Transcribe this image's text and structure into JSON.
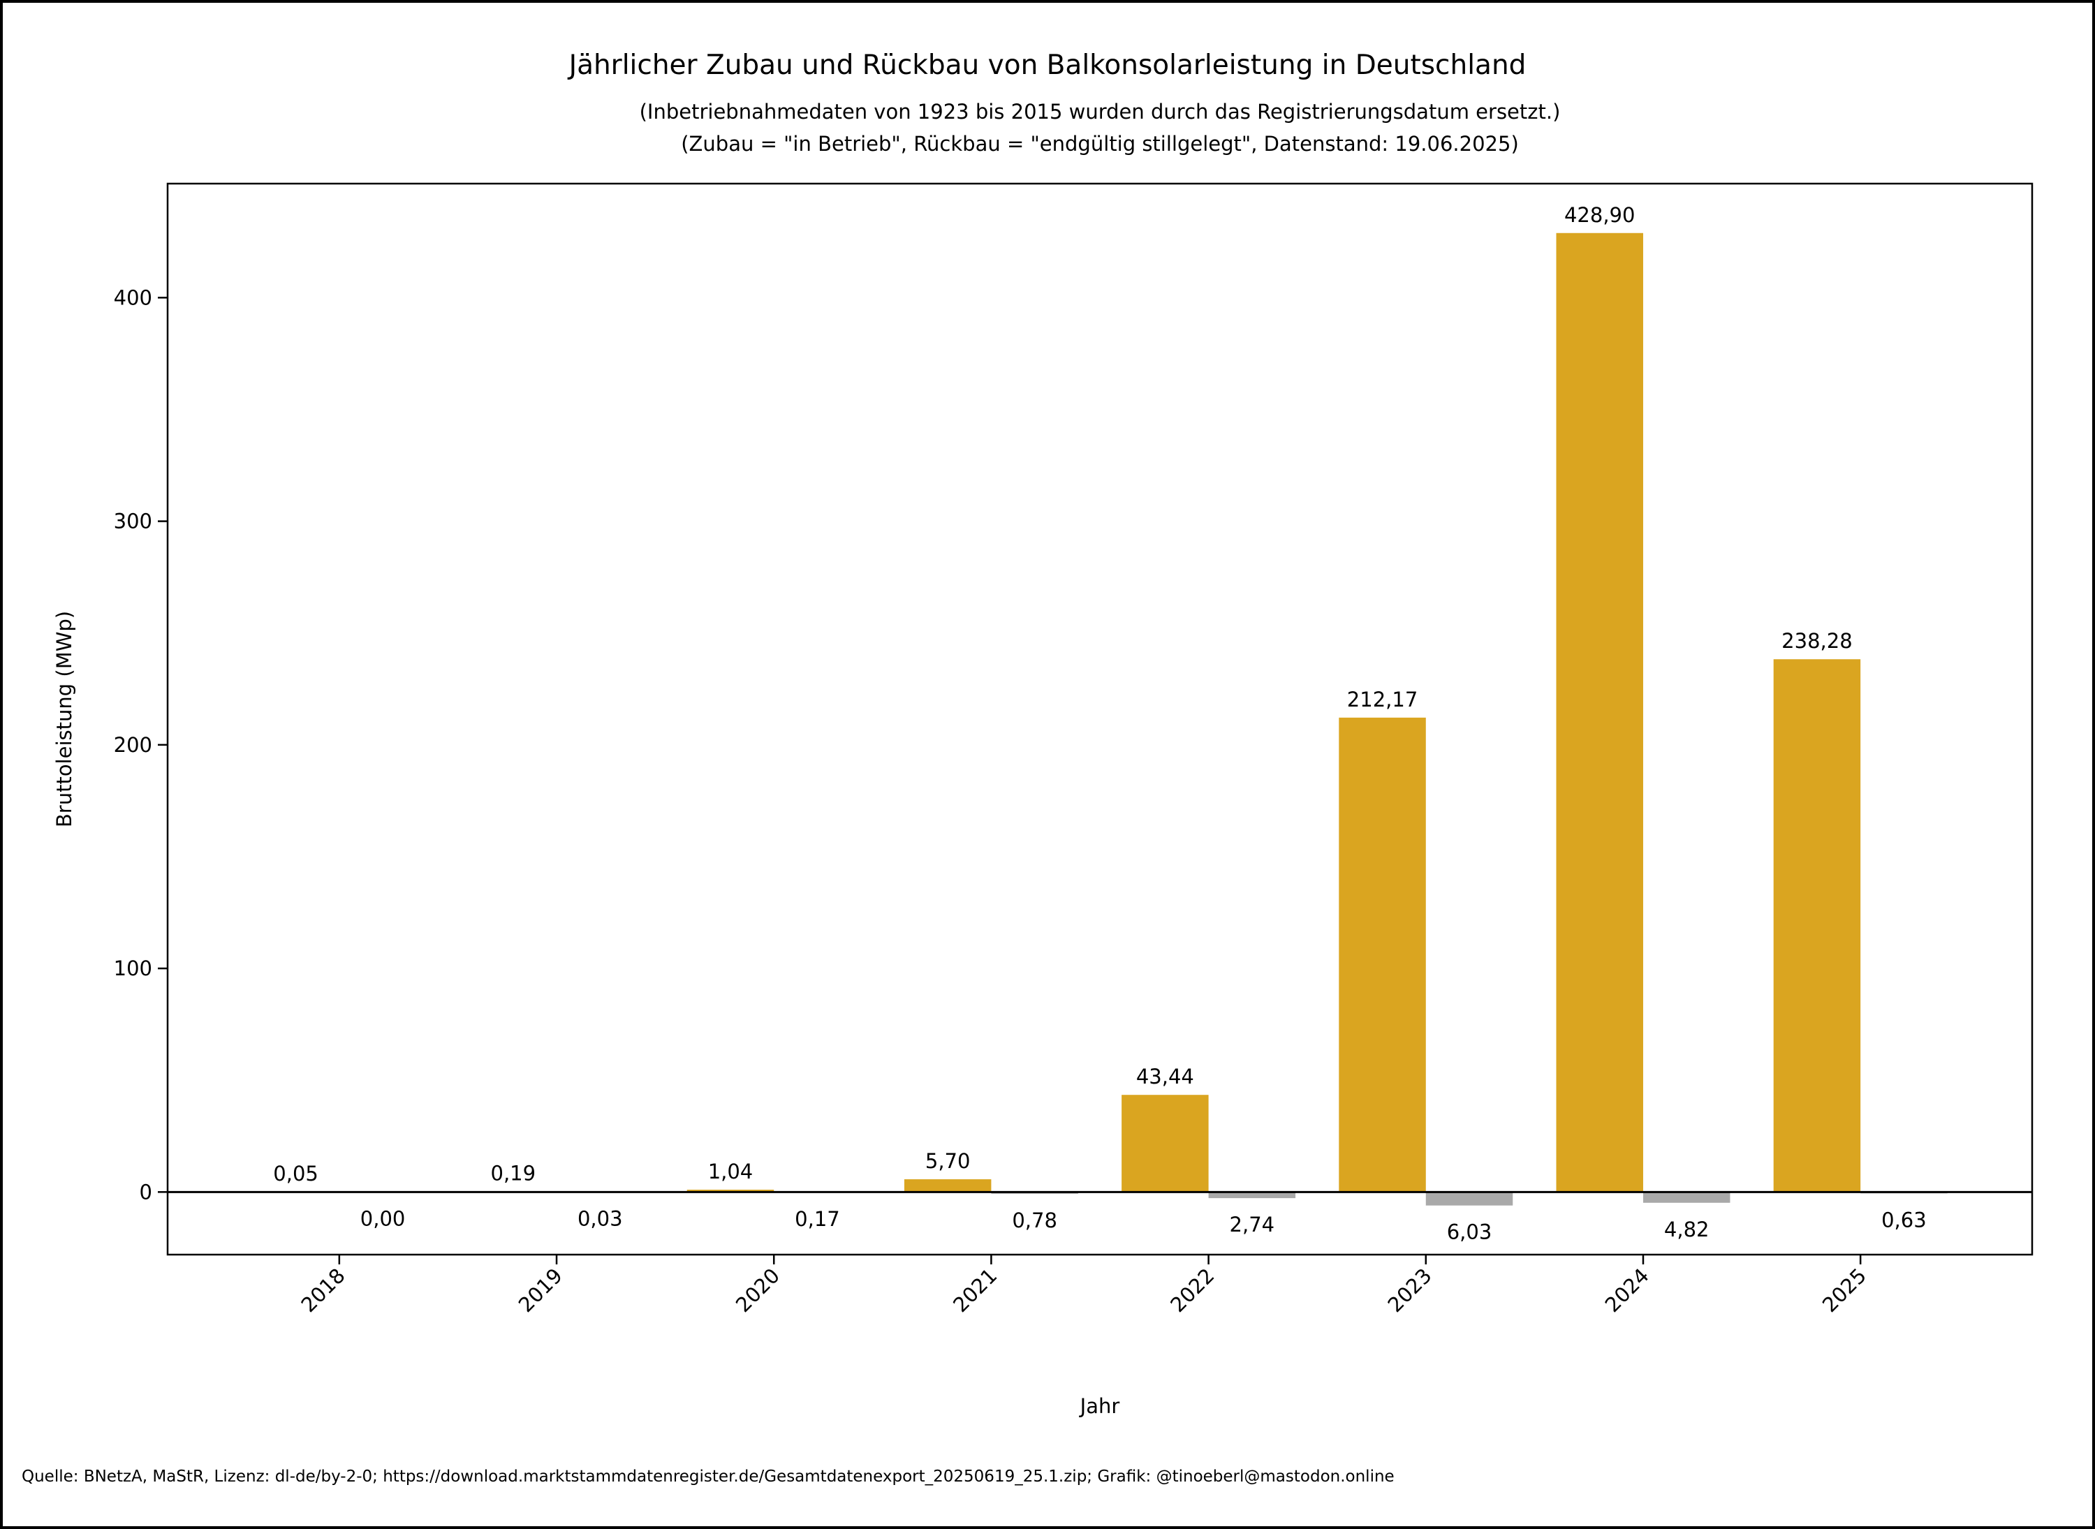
{
  "chart_data": {
    "type": "bar",
    "title": "Jährlicher Zubau und Rückbau von Balkonsolarleistung in Deutschland",
    "subtitle_lines": [
      "(Inbetriebnahmedaten von 1923 bis 2015 wurden durch das Registrierungsdatum ersetzt.)",
      "(Zubau = \"in Betrieb\", Rückbau = \"endgültig stillgelegt\", Datenstand: 19.06.2025)"
    ],
    "xlabel": "Jahr",
    "ylabel": "Bruttoleistung (MWp)",
    "categories": [
      "2018",
      "2019",
      "2020",
      "2021",
      "2022",
      "2023",
      "2024",
      "2025"
    ],
    "series": [
      {
        "name": "Zubau",
        "color": "#DAA520",
        "values": [
          0.05,
          0.19,
          1.04,
          5.7,
          43.44,
          212.17,
          428.9,
          238.28
        ],
        "labels": [
          "0,05",
          "0,19",
          "1,04",
          "5,70",
          "43,44",
          "212,17",
          "428,90",
          "238,28"
        ]
      },
      {
        "name": "Rückbau",
        "color": "#A9A9A9",
        "values": [
          -0.0,
          -0.03,
          -0.17,
          -0.78,
          -2.74,
          -6.03,
          -4.82,
          -0.63
        ],
        "labels": [
          "0,00",
          "0,03",
          "0,17",
          "0,78",
          "2,74",
          "6,03",
          "4,82",
          "0,63"
        ]
      }
    ],
    "yticks": [
      0,
      100,
      200,
      300,
      400
    ],
    "ytick_labels": [
      "0",
      "100",
      "200",
      "300",
      "400"
    ],
    "ylim": [
      -28,
      451
    ],
    "xlim": [
      2017.21,
      2025.79
    ],
    "grid": false,
    "footer": "Quelle: BNetzA, MaStR, Lizenz: dl-de/by-2-0; https://download.marktstammdatenregister.de/Gesamtdatenexport_20250619_25.1.zip; Grafik: @tinoeberl@mastodon.online"
  }
}
